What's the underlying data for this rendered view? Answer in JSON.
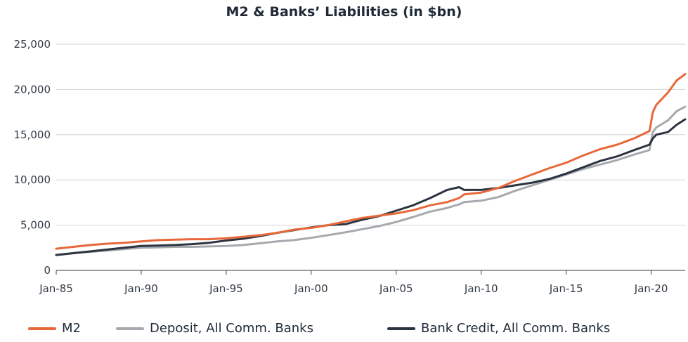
{
  "chart_data": {
    "type": "line",
    "title": "M2 & Banks’ Liabilities (in $bn)",
    "xlabel": "",
    "ylabel": "",
    "ylim": [
      0,
      25000
    ],
    "y_ticks": [
      "0",
      "5,000",
      "10,000",
      "15,000",
      "20,000",
      "25,000"
    ],
    "x_ticks": [
      "Jan-85",
      "Jan-90",
      "Jan-95",
      "Jan-00",
      "Jan-05",
      "Jan-10",
      "Jan-15",
      "Jan-20"
    ],
    "grid": "horizontal",
    "legend_position": "bottom",
    "x": [
      1985,
      1986,
      1987,
      1988,
      1989,
      1990,
      1991,
      1992,
      1993,
      1994,
      1995,
      1996,
      1997,
      1998,
      1999,
      2000,
      2001,
      2002,
      2003,
      2004,
      2005,
      2006,
      2007,
      2008,
      2008.7,
      2009,
      2010,
      2011,
      2012,
      2013,
      2014,
      2015,
      2016,
      2017,
      2018,
      2019,
      2019.9,
      2020.1,
      2020.3,
      2021,
      2021.5,
      2022
    ],
    "series": [
      {
        "name": "M2",
        "color": "#e8683a",
        "values": [
          2400,
          2600,
          2800,
          2950,
          3050,
          3200,
          3350,
          3400,
          3450,
          3450,
          3550,
          3700,
          3900,
          4150,
          4500,
          4700,
          5000,
          5400,
          5800,
          6050,
          6300,
          6650,
          7200,
          7550,
          8000,
          8400,
          8600,
          9100,
          9900,
          10600,
          11300,
          11900,
          12700,
          13400,
          13900,
          14600,
          15400,
          17500,
          18300,
          19700,
          21000,
          21700
        ]
      },
      {
        "name": "Deposit, All Comm. Banks",
        "color": "#a6a9ad",
        "values": [
          1700,
          1900,
          2050,
          2200,
          2350,
          2500,
          2550,
          2600,
          2600,
          2650,
          2700,
          2800,
          3000,
          3200,
          3350,
          3600,
          3900,
          4200,
          4550,
          4900,
          5350,
          5900,
          6500,
          6900,
          7300,
          7550,
          7700,
          8100,
          8800,
          9400,
          10000,
          10600,
          11200,
          11700,
          12200,
          12800,
          13300,
          15300,
          15800,
          16600,
          17600,
          18100
        ]
      },
      {
        "name": "Bank Credit, All Comm. Banks",
        "color": "#2b3440",
        "values": [
          1700,
          1900,
          2100,
          2300,
          2500,
          2700,
          2750,
          2800,
          2900,
          3050,
          3300,
          3500,
          3800,
          4150,
          4450,
          4750,
          5000,
          5100,
          5600,
          6000,
          6600,
          7200,
          8000,
          8900,
          9200,
          8900,
          8900,
          9100,
          9400,
          9700,
          10100,
          10700,
          11400,
          12100,
          12600,
          13300,
          13900,
          14600,
          15000,
          15300,
          16100,
          16700
        ]
      }
    ]
  }
}
